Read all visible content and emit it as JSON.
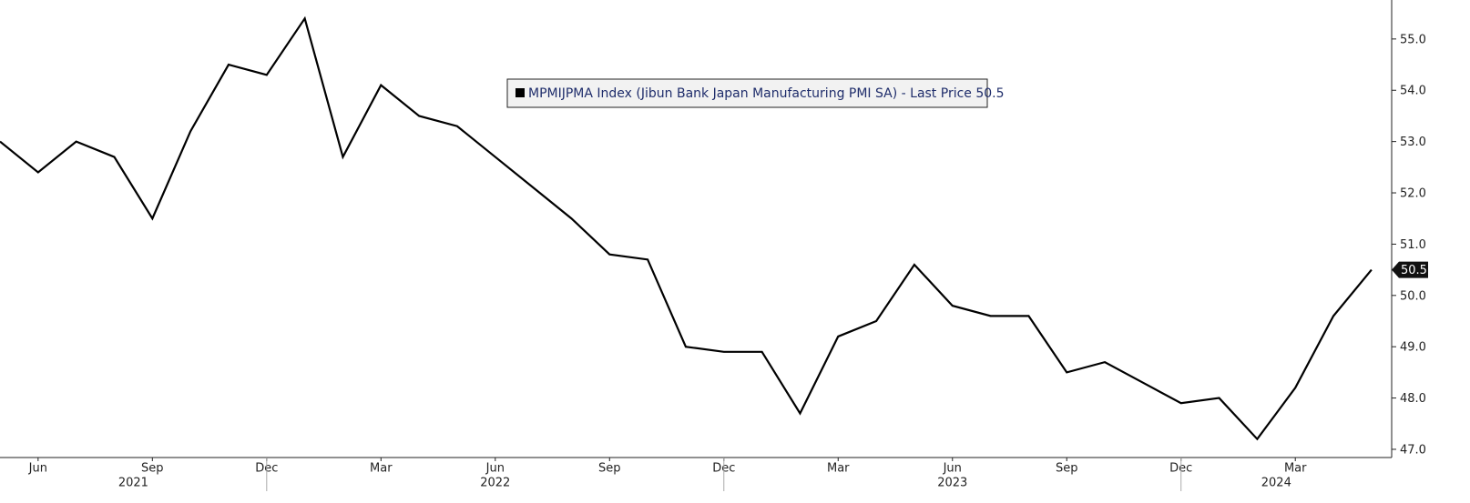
{
  "chart_data": {
    "type": "line",
    "categories": [
      null,
      "Jun",
      null,
      null,
      "Sep",
      null,
      null,
      "Dec",
      null,
      null,
      "Mar",
      null,
      null,
      "Jun",
      null,
      null,
      "Sep",
      null,
      null,
      "Dec",
      null,
      null,
      "Mar",
      null,
      null,
      "Jun",
      null,
      null,
      "Sep",
      null,
      null,
      "Dec",
      null,
      null,
      "Mar",
      null,
      null
    ],
    "year_labels": [
      "2021",
      "2022",
      "2023",
      "2024"
    ],
    "series": [
      {
        "name": "MPMIJPMA Index (Jibun Bank Japan Manufacturing PMI SA) - Last Price 50.5",
        "color": "#000000",
        "values": [
          53.0,
          52.4,
          53.0,
          52.7,
          51.5,
          53.2,
          54.5,
          54.3,
          55.4,
          52.7,
          54.1,
          53.5,
          53.3,
          52.7,
          52.1,
          51.5,
          50.8,
          50.7,
          49.0,
          48.9,
          48.9,
          47.7,
          49.2,
          49.5,
          50.6,
          49.8,
          49.6,
          49.6,
          48.5,
          48.7,
          48.3,
          47.9,
          48.0,
          47.2,
          48.2,
          49.6,
          50.5
        ]
      }
    ],
    "last_price_label": "50.5",
    "ylim": [
      46.84,
      55.76
    ],
    "yticks": [
      {
        "value": 47,
        "label": "47.0"
      },
      {
        "value": 48,
        "label": "48.0"
      },
      {
        "value": 49,
        "label": "49.0"
      },
      {
        "value": 50,
        "label": "50.0"
      },
      {
        "value": 51,
        "label": "51.0"
      },
      {
        "value": 52,
        "label": "52.0"
      },
      {
        "value": 53,
        "label": "53.0"
      },
      {
        "value": 54,
        "label": "54.0"
      },
      {
        "value": 55,
        "label": "55.0"
      }
    ]
  }
}
